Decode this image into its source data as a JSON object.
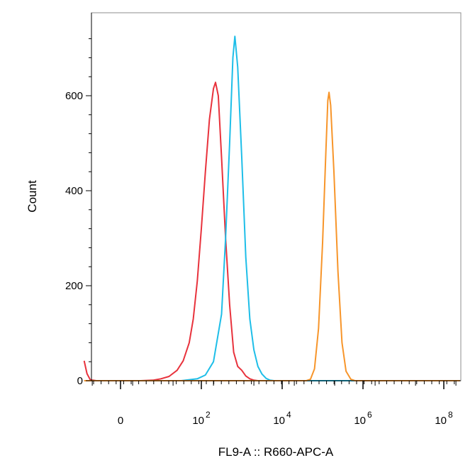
{
  "chart_data": {
    "type": "line",
    "xlabel": "FL9-A :: R660-APC-A",
    "ylabel": "Count",
    "x_scale": "biexponential",
    "ylim": [
      0,
      750
    ],
    "grid": false,
    "y_ticks": [
      {
        "value": 0,
        "label": "0"
      },
      {
        "value": 200,
        "label": "200"
      },
      {
        "value": 400,
        "label": "400"
      },
      {
        "value": 600,
        "label": "600"
      }
    ],
    "x_ticks": [
      {
        "value": 0,
        "base": "0",
        "exp": ""
      },
      {
        "value": 2,
        "base": "10",
        "exp": "2"
      },
      {
        "value": 4,
        "base": "10",
        "exp": "4"
      },
      {
        "value": 6,
        "base": "10",
        "exp": "6"
      },
      {
        "value": 8,
        "base": "10",
        "exp": "8"
      }
    ],
    "series": [
      {
        "color": "#e8323c",
        "points": [
          [
            -0.9,
            42
          ],
          [
            -0.83,
            15
          ],
          [
            -0.75,
            2
          ],
          [
            -0.6,
            0
          ],
          [
            0.5,
            0
          ],
          [
            0.8,
            1
          ],
          [
            1.0,
            4
          ],
          [
            1.2,
            9
          ],
          [
            1.4,
            22
          ],
          [
            1.55,
            42
          ],
          [
            1.7,
            80
          ],
          [
            1.8,
            130
          ],
          [
            1.9,
            210
          ],
          [
            2.0,
            320
          ],
          [
            2.1,
            440
          ],
          [
            2.2,
            550
          ],
          [
            2.3,
            615
          ],
          [
            2.35,
            628
          ],
          [
            2.42,
            600
          ],
          [
            2.5,
            470
          ],
          [
            2.6,
            300
          ],
          [
            2.7,
            160
          ],
          [
            2.8,
            60
          ],
          [
            2.9,
            30
          ],
          [
            3.0,
            22
          ],
          [
            3.1,
            10
          ],
          [
            3.2,
            4
          ],
          [
            3.3,
            1
          ],
          [
            3.4,
            0
          ],
          [
            8.4,
            0
          ]
        ]
      },
      {
        "color": "#1ebee8",
        "points": [
          [
            -0.9,
            0
          ],
          [
            1.5,
            0
          ],
          [
            1.9,
            4
          ],
          [
            2.1,
            12
          ],
          [
            2.3,
            40
          ],
          [
            2.5,
            140
          ],
          [
            2.6,
            300
          ],
          [
            2.7,
            500
          ],
          [
            2.78,
            680
          ],
          [
            2.83,
            725
          ],
          [
            2.9,
            660
          ],
          [
            3.0,
            470
          ],
          [
            3.1,
            260
          ],
          [
            3.2,
            130
          ],
          [
            3.3,
            65
          ],
          [
            3.4,
            30
          ],
          [
            3.5,
            14
          ],
          [
            3.6,
            5
          ],
          [
            3.7,
            1
          ],
          [
            3.8,
            0
          ],
          [
            8.4,
            0
          ]
        ]
      },
      {
        "color": "#f7952a",
        "points": [
          [
            -0.9,
            0
          ],
          [
            4.6,
            0
          ],
          [
            4.7,
            3
          ],
          [
            4.8,
            25
          ],
          [
            4.9,
            110
          ],
          [
            5.0,
            290
          ],
          [
            5.08,
            480
          ],
          [
            5.13,
            590
          ],
          [
            5.16,
            607
          ],
          [
            5.2,
            580
          ],
          [
            5.28,
            440
          ],
          [
            5.38,
            230
          ],
          [
            5.48,
            80
          ],
          [
            5.58,
            20
          ],
          [
            5.7,
            3
          ],
          [
            5.8,
            0
          ],
          [
            8.4,
            0
          ]
        ]
      }
    ]
  }
}
